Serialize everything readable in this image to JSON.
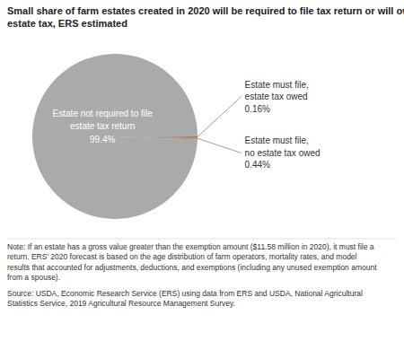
{
  "chart_data": {
    "type": "pie",
    "title": "Small share of farm estates created in 2020 will be required to file tax return or will owe\nestate tax, ERS estimated",
    "categories": [
      "Estate not required to file\nestate tax return",
      "Estate must file,\nestate tax owed",
      "Estate must file,\nno estate tax owed"
    ],
    "values": [
      99.4,
      0.16,
      0.44
    ],
    "value_labels": [
      "99.4%",
      "0.16%",
      "0.44%"
    ],
    "data_labels": true,
    "colors": [
      "#aaaaaa",
      "#d2691e",
      "#989898"
    ],
    "note": "Note: If an estate has a gross value greater than the exemption amount ($11.58 million in 2020), it must file a\nreturn. ERS’ 2020 forecast is based on the age distribution of farm operators, mortality rates, and model\nresults that accounted for adjustments, deductions, and exemptions (including any unused exemption amount\nfrom a spouse).",
    "source": "Source: USDA, Economic Research Service (ERS) using data from ERS and USDA, National Agricultural\nStatistics Service, 2019 Agricultural Resource Management Survey."
  }
}
